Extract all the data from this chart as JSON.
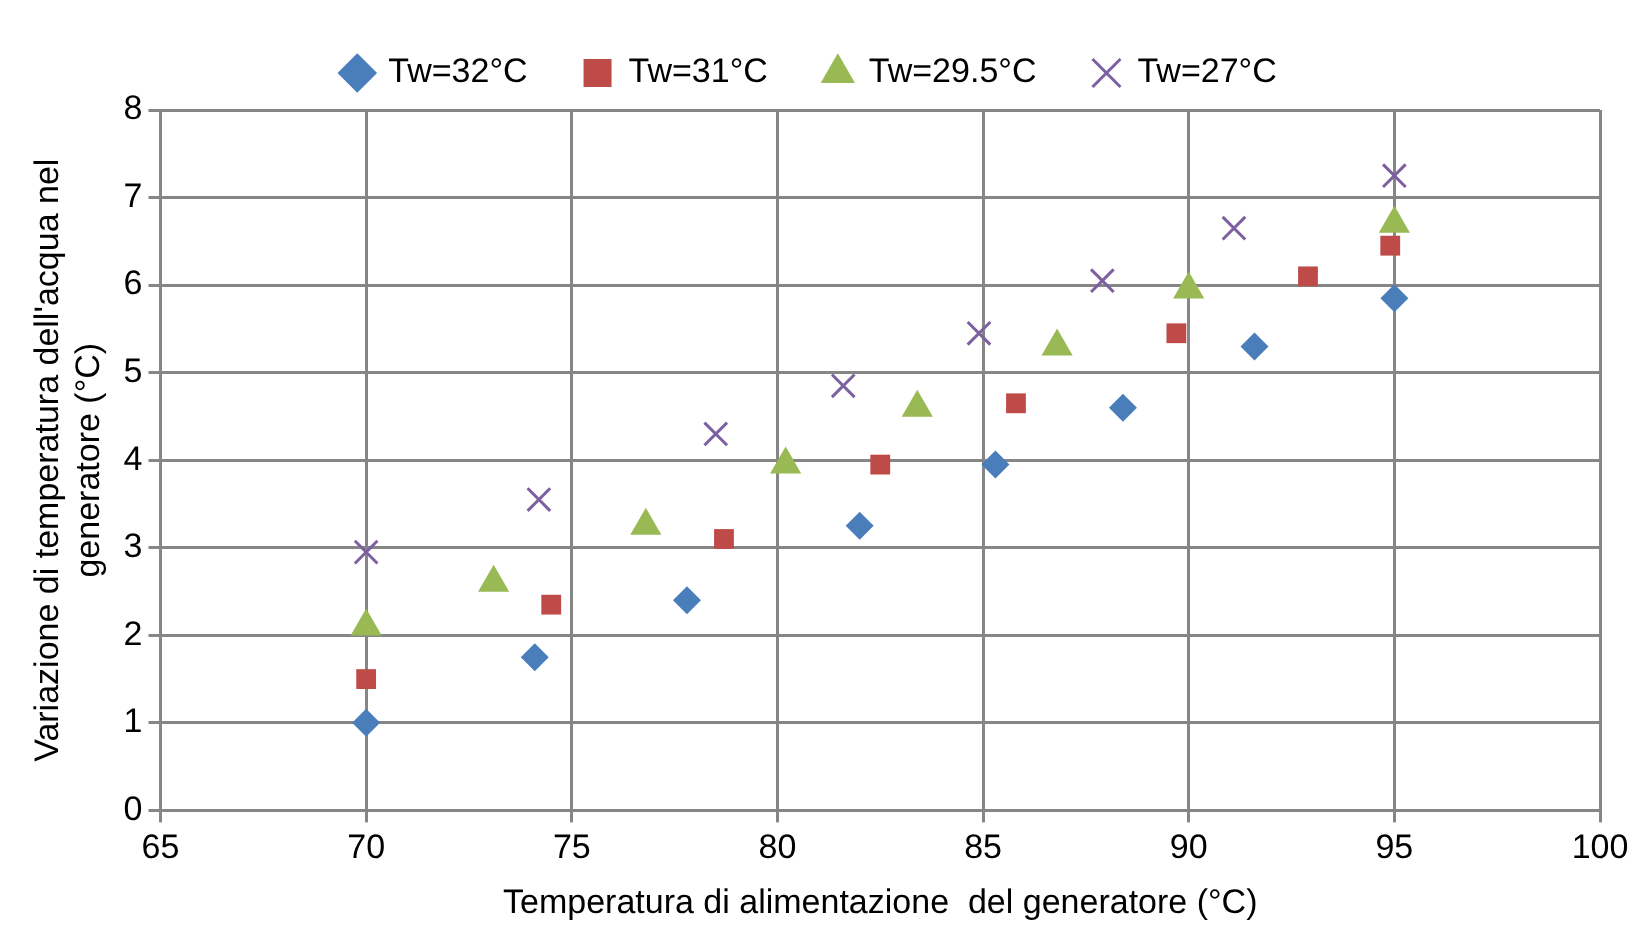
{
  "chart_data": {
    "type": "scatter",
    "xlabel": "Temperatura di alimentazione  del generatore (°C)",
    "ylabel": "Variazione di temperatura dell'acqua nel\ngeneratore (°C)",
    "xlim": [
      65,
      100
    ],
    "xticks": [
      65,
      70,
      75,
      80,
      85,
      90,
      95,
      100
    ],
    "ylim": [
      0,
      8
    ],
    "yticks": [
      0,
      1,
      2,
      3,
      4,
      5,
      6,
      7,
      8
    ],
    "grid": true,
    "legend": "top",
    "series": [
      {
        "name": "Tw=32°C",
        "color": "#4a7ebb",
        "marker": "diamond",
        "x": [
          70,
          74.1,
          77.8,
          82,
          85.3,
          88.4,
          91.6,
          95
        ],
        "values": [
          1.0,
          1.75,
          2.4,
          3.25,
          3.95,
          4.6,
          5.3,
          5.85
        ]
      },
      {
        "name": "Tw=31°C",
        "color": "#be4b48",
        "marker": "square",
        "x": [
          70,
          74.5,
          78.7,
          82.5,
          85.8,
          89.7,
          92.9,
          94.9
        ],
        "values": [
          1.5,
          2.35,
          3.1,
          3.95,
          4.65,
          5.45,
          6.1,
          6.45
        ]
      },
      {
        "name": "Tw=29.5°C",
        "color": "#98b954",
        "marker": "triangle",
        "x": [
          70,
          73.1,
          76.8,
          80.2,
          83.4,
          86.8,
          90,
          95
        ],
        "values": [
          2.1,
          2.6,
          3.25,
          3.95,
          4.6,
          5.3,
          5.95,
          6.7
        ]
      },
      {
        "name": "Tw=27°C",
        "color": "#7d60a0",
        "marker": "cross",
        "x": [
          70,
          74.2,
          78.5,
          81.6,
          84.9,
          87.9,
          91.1,
          95
        ],
        "values": [
          2.95,
          3.55,
          4.3,
          4.85,
          5.45,
          6.05,
          6.65,
          7.25
        ]
      }
    ]
  }
}
